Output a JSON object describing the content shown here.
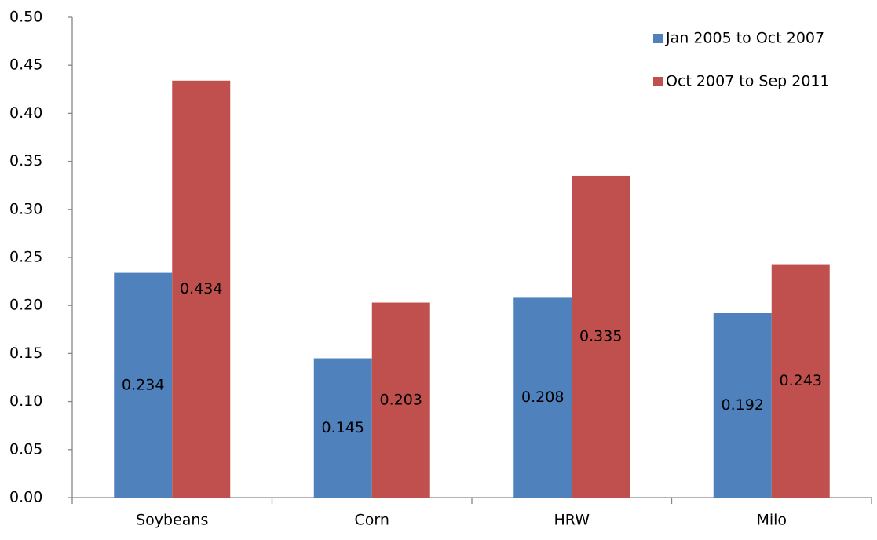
{
  "chart_data": {
    "type": "bar",
    "categories": [
      "Soybeans",
      "Corn",
      "HRW",
      "Milo"
    ],
    "series": [
      {
        "name": "Jan 2005 to Oct 2007",
        "color": "#4f81bd",
        "values": [
          0.234,
          0.145,
          0.208,
          0.192
        ]
      },
      {
        "name": "Oct 2007 to Sep 2011",
        "color": "#c0504d",
        "values": [
          0.434,
          0.203,
          0.335,
          0.243
        ]
      }
    ],
    "ylim": [
      0,
      0.5
    ],
    "yticks": [
      {
        "value": 0,
        "label": "0.00"
      },
      0.05,
      {
        "value": 0.1,
        "label": "0.10"
      },
      0.15,
      {
        "value": 0.2,
        "label": "0.20"
      },
      0.25,
      {
        "value": 0.3,
        "label": "0.30"
      },
      0.35,
      {
        "value": 0.4,
        "label": "0.40"
      },
      0.45,
      {
        "value": 0.5,
        "label": "0.50"
      }
    ],
    "grid": false,
    "legend": "top-right",
    "data_labels": true
  }
}
